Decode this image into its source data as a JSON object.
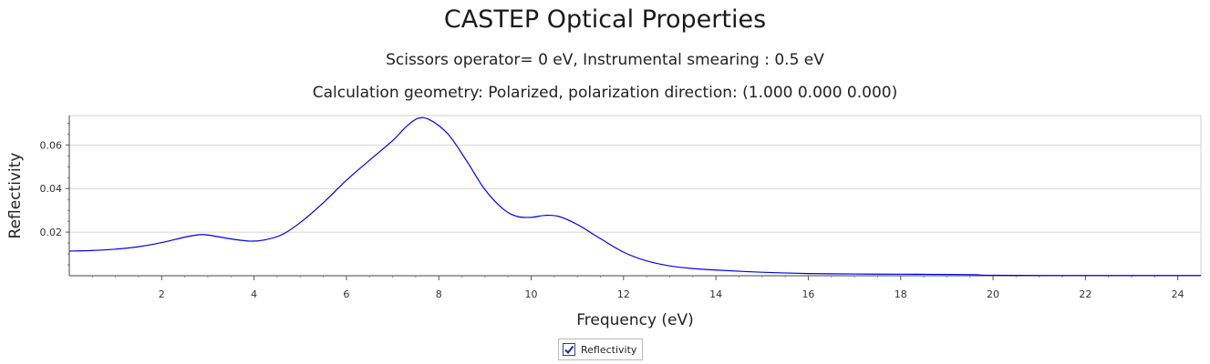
{
  "chart_data": {
    "type": "line",
    "title": "CASTEP Optical Properties",
    "subtitles": [
      "Scissors operator= 0 eV, Instrumental smearing : 0.5 eV",
      "Calculation geometry: Polarized, polarization direction: (1.000 0.000 0.000)"
    ],
    "xlabel": "Frequency (eV)",
    "ylabel": "Reflectivity",
    "xlim": [
      0,
      24.5
    ],
    "ylim": [
      0,
      0.0735
    ],
    "xticks": [
      2,
      4,
      6,
      8,
      10,
      12,
      14,
      16,
      18,
      20,
      22,
      24
    ],
    "xtick_labels": [
      "2",
      "4",
      "6",
      "8",
      "10",
      "12",
      "14",
      "16",
      "18",
      "20",
      "22",
      "24"
    ],
    "yticks": [
      0.02,
      0.04,
      0.06
    ],
    "ytick_labels": [
      "0.02",
      "0.04",
      "0.06"
    ],
    "grid": true,
    "legend": "bottom-center",
    "series": [
      {
        "name": "Reflectivity",
        "color": "#0000ee",
        "x": [
          0,
          0.5,
          1,
          1.5,
          2,
          2.5,
          2.8,
          3,
          3.5,
          3.9,
          4.2,
          4.6,
          5,
          5.5,
          6,
          6.5,
          7,
          7.3,
          7.55,
          7.8,
          8.2,
          8.6,
          9,
          9.4,
          9.7,
          10,
          10.3,
          10.6,
          11,
          11.5,
          12,
          12.5,
          13,
          13.5,
          14,
          15,
          16,
          17,
          18,
          19,
          19.6,
          20,
          22,
          24.5
        ],
        "y": [
          0.0113,
          0.0116,
          0.0122,
          0.0133,
          0.0152,
          0.0177,
          0.0188,
          0.0187,
          0.0169,
          0.0159,
          0.0163,
          0.0188,
          0.0244,
          0.0335,
          0.0438,
          0.053,
          0.062,
          0.0685,
          0.0722,
          0.0716,
          0.065,
          0.0528,
          0.0395,
          0.0305,
          0.0272,
          0.0268,
          0.0277,
          0.0272,
          0.0235,
          0.017,
          0.0108,
          0.0068,
          0.0045,
          0.0033,
          0.0026,
          0.0016,
          0.001,
          0.0008,
          0.0007,
          0.0006,
          0.0005,
          0.0002,
          0.0001,
          0.0001
        ]
      }
    ]
  }
}
